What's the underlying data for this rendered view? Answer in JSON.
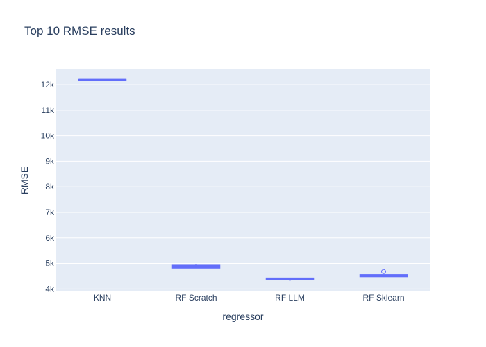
{
  "chart_data": {
    "type": "box",
    "title": "Top 10 RMSE results",
    "xlabel": "regressor",
    "ylabel": "RMSE",
    "categories": [
      "KNN",
      "RF Scratch",
      "RF LLM",
      "RF Sklearn"
    ],
    "ylim": [
      3900,
      12600
    ],
    "yticks": [
      4000,
      5000,
      6000,
      7000,
      8000,
      9000,
      10000,
      11000,
      12000
    ],
    "ytick_labels": [
      "4k",
      "5k",
      "6k",
      "7k",
      "8k",
      "9k",
      "10k",
      "11k",
      "12k"
    ],
    "grid": true,
    "boxes": [
      {
        "category": "KNN",
        "min": 12200,
        "q1": 12200,
        "median": 12200,
        "q3": 12200,
        "max": 12200,
        "outliers": []
      },
      {
        "category": "RF Scratch",
        "min": 4820,
        "q1": 4830,
        "median": 4880,
        "q3": 4920,
        "max": 4970,
        "outliers": []
      },
      {
        "category": "RF LLM",
        "min": 4320,
        "q1": 4370,
        "median": 4395,
        "q3": 4420,
        "max": 4440,
        "outliers": []
      },
      {
        "category": "RF Sklearn",
        "min": 4470,
        "q1": 4490,
        "median": 4520,
        "q3": 4550,
        "max": 4560,
        "outliers": [
          4680
        ]
      }
    ],
    "colors": {
      "box_stroke": "#636efa",
      "box_fill": "#b1b6fc",
      "plot_bg": "#e5ecf6",
      "grid": "#ffffff",
      "text": "#2a3f5f"
    }
  }
}
